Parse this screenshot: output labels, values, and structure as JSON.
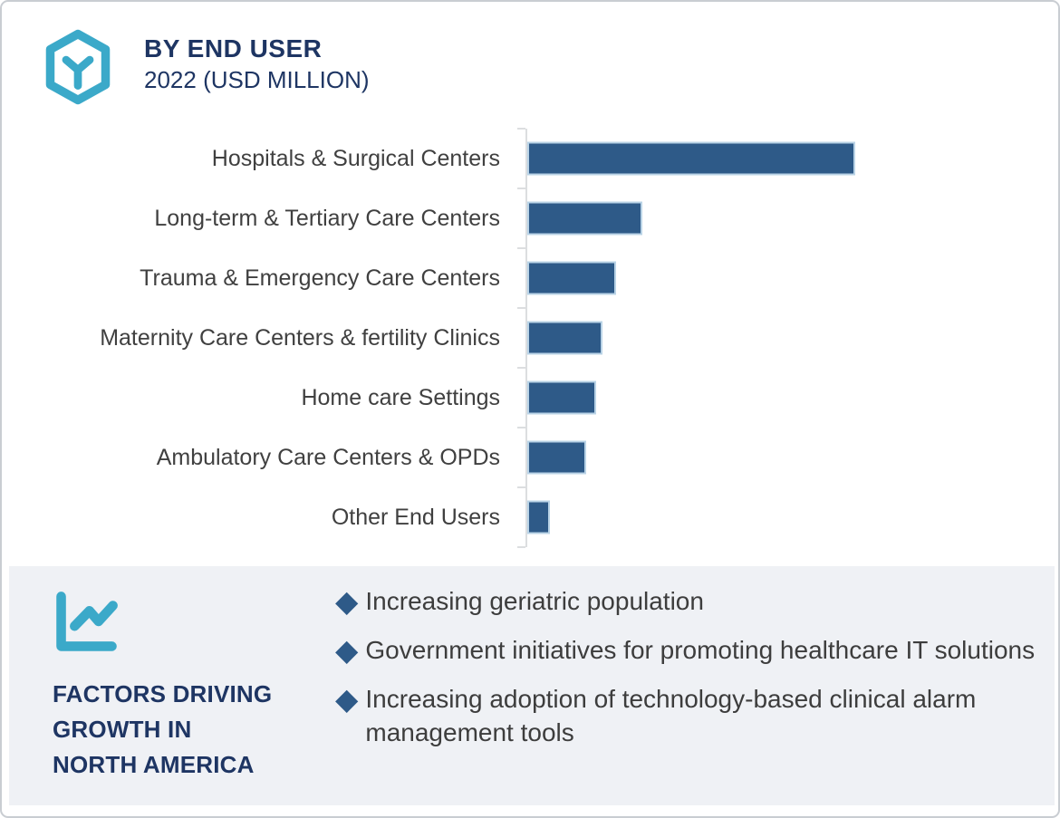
{
  "page": {
    "background": "#ffffff",
    "border_color": "#c9cdd2",
    "panel_background": "#eff1f5"
  },
  "colors": {
    "navy_heading": "#1e3563",
    "bar_fill": "#2e5a88",
    "bar_edge": "#b9d3e6",
    "teal_icon": "#3ba9c9",
    "label_gray": "#404040",
    "axis_gray": "#dcdee0",
    "bullet_diamond": "#2e5a88"
  },
  "header": {
    "logo_icon": "hexagon-y-logo-icon",
    "title": "BY END USER",
    "subtitle": "2022 (USD MILLION)"
  },
  "chart_data": {
    "type": "bar",
    "orientation": "horizontal",
    "title": "BY END USER",
    "subtitle": "2022 (USD MILLION)",
    "categories": [
      "Hospitals & Surgical Centers",
      "Long-term & Tertiary Care Centers",
      "Trauma & Emergency Care Centers",
      "Maternity Care Centers & fertility Clinics",
      "Home care Settings",
      "Ambulatory Care Centers & OPDs",
      "Other End Users"
    ],
    "values": [
      100,
      35,
      27,
      23,
      21,
      18,
      7
    ],
    "values_note": "bars carry no printed numbers; values estimated from pixel lengths as percent of longest bar",
    "bar_color": "#2e5a88",
    "grid": false,
    "value_axis_labels_visible": false,
    "category_axis_side": "left",
    "legend": "none"
  },
  "factors": {
    "panel_icon": "line-chart-icon",
    "heading_lines": [
      "FACTORS DRIVING",
      "GROWTH IN",
      "NORTH AMERICA"
    ],
    "bullet_icon": "diamond-bullet-icon",
    "items": [
      "Increasing geriatric population",
      "Government initiatives for promoting healthcare IT solutions",
      "Increasing adoption of technology-based clinical alarm management tools"
    ]
  }
}
